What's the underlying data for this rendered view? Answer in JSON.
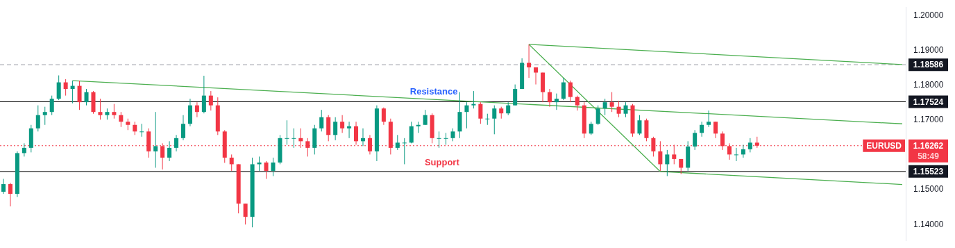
{
  "chart_data": {
    "type": "candlestick",
    "categories": [
      null,
      null,
      null,
      null,
      null,
      null,
      null,
      null,
      null,
      null,
      null,
      null,
      null,
      null,
      null,
      null,
      null,
      null,
      null,
      null,
      null,
      null,
      null,
      null,
      null,
      null,
      null,
      null,
      null,
      null,
      null,
      null,
      null,
      null,
      null,
      null,
      null,
      null,
      null,
      null,
      null,
      null,
      null,
      null,
      null,
      null,
      null,
      null,
      null,
      null,
      null,
      null,
      null,
      null,
      null,
      null,
      null,
      null,
      null,
      null,
      null,
      null,
      null,
      null,
      null,
      null,
      null,
      null,
      null,
      null,
      null,
      null,
      null,
      null,
      null,
      null,
      null,
      null,
      null,
      null,
      null,
      null,
      null,
      null,
      null,
      null,
      null,
      null,
      null,
      null,
      null,
      null,
      null,
      null,
      null,
      null,
      null,
      null,
      null,
      null,
      null,
      null,
      null,
      null,
      null,
      null,
      null,
      null,
      null,
      null,
      null,
      null,
      null,
      null,
      null,
      null,
      null,
      null,
      null,
      null,
      null,
      null,
      null,
      null,
      null,
      null,
      null,
      null,
      null,
      null,
      null
    ],
    "ohlc": [
      [
        1.1494,
        1.1531,
        1.1488,
        1.1516
      ],
      [
        1.1516,
        1.152,
        1.1452,
        1.1488
      ],
      [
        1.1488,
        1.161,
        1.1479,
        1.1605
      ],
      [
        1.1605,
        1.1633,
        1.1595,
        1.162
      ],
      [
        1.162,
        1.1686,
        1.1607,
        1.1676
      ],
      [
        1.1676,
        1.1742,
        1.1667,
        1.1714
      ],
      [
        1.1714,
        1.1738,
        1.1686,
        1.1723
      ],
      [
        1.1723,
        1.177,
        1.1714,
        1.1761
      ],
      [
        1.1761,
        1.1828,
        1.1757,
        1.1808
      ],
      [
        1.1808,
        1.1817,
        1.177,
        1.1789
      ],
      [
        1.1789,
        1.1813,
        1.1748,
        1.1798
      ],
      [
        1.1798,
        1.1813,
        1.1729,
        1.1751
      ],
      [
        1.1751,
        1.1789,
        1.1742,
        1.178
      ],
      [
        1.178,
        1.1783,
        1.1718,
        1.1723
      ],
      [
        1.1723,
        1.1761,
        1.1701,
        1.1714
      ],
      [
        1.1714,
        1.1733,
        1.1701,
        1.1723
      ],
      [
        1.1723,
        1.1746,
        1.1704,
        1.1714
      ],
      [
        1.1714,
        1.1723,
        1.168,
        1.1695
      ],
      [
        1.1695,
        1.1704,
        1.1671,
        1.1686
      ],
      [
        1.1686,
        1.1695,
        1.1657,
        1.1667
      ],
      [
        1.1667,
        1.1689,
        1.1652,
        1.1667
      ],
      [
        1.1667,
        1.1676,
        1.1592,
        1.161
      ],
      [
        1.161,
        1.1723,
        1.1563,
        1.1625
      ],
      [
        1.1625,
        1.1633,
        1.1558,
        1.1592
      ],
      [
        1.1592,
        1.1639,
        1.1582,
        1.162
      ],
      [
        1.162,
        1.1657,
        1.161,
        1.1648
      ],
      [
        1.1648,
        1.1714,
        1.1642,
        1.1689
      ],
      [
        1.1689,
        1.1761,
        1.1682,
        1.1742
      ],
      [
        1.1742,
        1.1751,
        1.1708,
        1.1723
      ],
      [
        1.1723,
        1.1827,
        1.1719,
        1.177
      ],
      [
        1.177,
        1.1783,
        1.1727,
        1.1742
      ],
      [
        1.1742,
        1.1765,
        1.1657,
        1.1667
      ],
      [
        1.1667,
        1.1671,
        1.1577,
        1.1592
      ],
      [
        1.1592,
        1.1601,
        1.1554,
        1.1573
      ],
      [
        1.1573,
        1.1573,
        1.1432,
        1.146
      ],
      [
        1.146,
        1.146,
        1.14,
        1.1422
      ],
      [
        1.1422,
        1.1592,
        1.1392,
        1.1573
      ],
      [
        1.1573,
        1.1595,
        1.1554,
        1.1578
      ],
      [
        1.1578,
        1.1582,
        1.1531,
        1.1554
      ],
      [
        1.1554,
        1.1592,
        1.1539,
        1.1578
      ],
      [
        1.1578,
        1.1657,
        1.1573,
        1.1648
      ],
      [
        1.1648,
        1.1699,
        1.1629,
        1.1648
      ],
      [
        1.1648,
        1.1676,
        1.162,
        1.1648
      ],
      [
        1.1648,
        1.1676,
        1.162,
        1.1639
      ],
      [
        1.1639,
        1.1648,
        1.1595,
        1.162
      ],
      [
        1.162,
        1.1686,
        1.1601,
        1.1676
      ],
      [
        1.1676,
        1.1729,
        1.1667,
        1.1708
      ],
      [
        1.1708,
        1.1714,
        1.1639,
        1.1657
      ],
      [
        1.1657,
        1.1708,
        1.1642,
        1.1695
      ],
      [
        1.1695,
        1.1714,
        1.1663,
        1.1676
      ],
      [
        1.1676,
        1.1695,
        1.1648,
        1.1682
      ],
      [
        1.1682,
        1.1695,
        1.1629,
        1.1639
      ],
      [
        1.1639,
        1.1676,
        1.1625,
        1.1648
      ],
      [
        1.1648,
        1.1657,
        1.1601,
        1.161
      ],
      [
        1.161,
        1.1742,
        1.1582,
        1.1733
      ],
      [
        1.1733,
        1.1736,
        1.1686,
        1.1695
      ],
      [
        1.1695,
        1.1704,
        1.1601,
        1.162
      ],
      [
        1.162,
        1.1657,
        1.1614,
        1.1635
      ],
      [
        1.1635,
        1.1648,
        1.1573,
        1.1635
      ],
      [
        1.1635,
        1.1695,
        1.1633,
        1.1682
      ],
      [
        1.1682,
        1.1695,
        1.1663,
        1.1686
      ],
      [
        1.1686,
        1.1729,
        1.1686,
        1.1714
      ],
      [
        1.1714,
        1.1719,
        1.1633,
        1.1648
      ],
      [
        1.1648,
        1.1667,
        1.162,
        1.1648
      ],
      [
        1.1648,
        1.1663,
        1.1629,
        1.1648
      ],
      [
        1.1648,
        1.1676,
        1.1639,
        1.1667
      ],
      [
        1.1667,
        1.178,
        1.1648,
        1.1723
      ],
      [
        1.1723,
        1.1751,
        1.1676,
        1.1742
      ],
      [
        1.1742,
        1.1783,
        1.1733,
        1.1746
      ],
      [
        1.1746,
        1.1751,
        1.1689,
        1.1704
      ],
      [
        1.1704,
        1.1718,
        1.1686,
        1.1704
      ],
      [
        1.1704,
        1.1742,
        1.1659,
        1.1733
      ],
      [
        1.1733,
        1.1738,
        1.1704,
        1.1719
      ],
      [
        1.1719,
        1.1751,
        1.1714,
        1.1742
      ],
      [
        1.1742,
        1.1802,
        1.1742,
        1.1789
      ],
      [
        1.1789,
        1.1877,
        1.1789,
        1.1864
      ],
      [
        1.1864,
        1.1917,
        1.1821,
        1.1851
      ],
      [
        1.1851,
        1.1851,
        1.1802,
        1.1836
      ],
      [
        1.1836,
        1.1836,
        1.1751,
        1.178
      ],
      [
        1.178,
        1.1789,
        1.1738,
        1.1751
      ],
      [
        1.1751,
        1.1776,
        1.1729,
        1.1761
      ],
      [
        1.1761,
        1.1821,
        1.1757,
        1.1808
      ],
      [
        1.1808,
        1.1813,
        1.1751,
        1.1766
      ],
      [
        1.1766,
        1.177,
        1.1727,
        1.1742
      ],
      [
        1.1742,
        1.1751,
        1.1648,
        1.1661
      ],
      [
        1.1661,
        1.1695,
        1.1657,
        1.1689
      ],
      [
        1.1689,
        1.1742,
        1.1686,
        1.1733
      ],
      [
        1.1733,
        1.1761,
        1.1714,
        1.1751
      ],
      [
        1.1751,
        1.178,
        1.1723,
        1.1738
      ],
      [
        1.1738,
        1.1755,
        1.1708,
        1.1718
      ],
      [
        1.1718,
        1.1751,
        1.1708,
        1.1742
      ],
      [
        1.1742,
        1.1746,
        1.1652,
        1.1661
      ],
      [
        1.1661,
        1.1714,
        1.1657,
        1.1699
      ],
      [
        1.1699,
        1.1704,
        1.1639,
        1.1648
      ],
      [
        1.1648,
        1.1652,
        1.1595,
        1.161
      ],
      [
        1.161,
        1.1639,
        1.1554,
        1.1573
      ],
      [
        1.1573,
        1.1614,
        1.1539,
        1.1601
      ],
      [
        1.1601,
        1.1629,
        1.1573,
        1.1588
      ],
      [
        1.1588,
        1.1588,
        1.1545,
        1.1563
      ],
      [
        1.1563,
        1.1639,
        1.1554,
        1.1624
      ],
      [
        1.1624,
        1.1671,
        1.1614,
        1.1663
      ],
      [
        1.1663,
        1.1695,
        1.1652,
        1.1686
      ],
      [
        1.1686,
        1.1727,
        1.168,
        1.1695
      ],
      [
        1.1695,
        1.1695,
        1.1648,
        1.1661
      ],
      [
        1.1661,
        1.1667,
        1.1614,
        1.1625
      ],
      [
        1.1625,
        1.1633,
        1.1586,
        1.1601
      ],
      [
        1.1601,
        1.162,
        1.1582,
        1.1601
      ],
      [
        1.1601,
        1.1629,
        1.1592,
        1.1616
      ],
      [
        1.1616,
        1.1648,
        1.1607,
        1.1635
      ],
      [
        1.1635,
        1.1652,
        1.162,
        1.16262
      ],
      null,
      null,
      null,
      null,
      null,
      null,
      null,
      null,
      null,
      null,
      null,
      null,
      null,
      null,
      null,
      null,
      null,
      null,
      null,
      null,
      null
    ],
    "series": [
      {
        "type": "line",
        "color": "#4caf50",
        "values": [
          null,
          null,
          null,
          null,
          null,
          null,
          null,
          null,
          null,
          null,
          1.1813,
          null,
          null,
          null,
          null,
          null,
          null,
          null,
          null,
          null,
          null,
          null,
          null,
          null,
          null,
          null,
          null,
          null,
          null,
          null,
          null,
          null,
          null,
          null,
          null,
          null,
          null,
          null,
          null,
          null,
          null,
          null,
          null,
          null,
          null,
          null,
          null,
          null,
          null,
          null,
          null,
          null,
          null,
          null,
          null,
          null,
          null,
          null,
          null,
          null,
          null,
          null,
          null,
          null,
          null,
          null,
          null,
          null,
          null,
          null,
          null,
          null,
          null,
          null,
          null,
          null,
          null,
          null,
          null,
          null,
          null,
          null,
          null,
          null,
          null,
          null,
          null,
          null,
          null,
          null,
          null,
          null,
          null,
          null,
          null,
          null,
          null,
          null,
          null,
          null,
          null,
          null,
          null,
          null,
          null,
          null,
          null,
          null,
          null,
          null,
          null,
          null,
          null,
          null,
          null,
          null,
          null,
          null,
          null,
          null,
          null,
          null,
          null,
          null,
          null,
          null,
          null,
          null,
          null,
          null,
          1.1689
        ]
      },
      {
        "type": "line",
        "color": "#4caf50",
        "values": [
          null,
          null,
          null,
          null,
          null,
          null,
          null,
          null,
          null,
          null,
          null,
          null,
          null,
          null,
          null,
          null,
          null,
          null,
          null,
          null,
          null,
          null,
          null,
          null,
          null,
          null,
          null,
          null,
          null,
          null,
          null,
          null,
          null,
          null,
          null,
          null,
          null,
          null,
          null,
          null,
          null,
          null,
          null,
          null,
          null,
          null,
          null,
          null,
          null,
          null,
          null,
          null,
          null,
          null,
          null,
          null,
          null,
          null,
          null,
          null,
          null,
          null,
          null,
          null,
          null,
          null,
          null,
          null,
          null,
          null,
          null,
          null,
          null,
          null,
          null,
          null,
          1.1917,
          null,
          null,
          null,
          null,
          null,
          null,
          null,
          null,
          null,
          null,
          null,
          null,
          null,
          null,
          null,
          null,
          null,
          null,
          null,
          null,
          null,
          null,
          null,
          null,
          null,
          null,
          null,
          null,
          null,
          null,
          null,
          null,
          null,
          null,
          null,
          null,
          null,
          null,
          null,
          null,
          null,
          null,
          null,
          null,
          null,
          null,
          null,
          null,
          null,
          null,
          null,
          null,
          null,
          1.1859
        ]
      },
      {
        "type": "line",
        "color": "#4caf50",
        "values": [
          null,
          null,
          null,
          null,
          null,
          null,
          null,
          null,
          null,
          null,
          null,
          null,
          null,
          null,
          null,
          null,
          null,
          null,
          null,
          null,
          null,
          null,
          null,
          null,
          null,
          null,
          null,
          null,
          null,
          null,
          null,
          null,
          null,
          null,
          null,
          null,
          null,
          null,
          null,
          null,
          null,
          null,
          null,
          null,
          null,
          null,
          null,
          null,
          null,
          null,
          null,
          null,
          null,
          null,
          null,
          null,
          null,
          null,
          null,
          null,
          null,
          null,
          null,
          null,
          null,
          null,
          null,
          null,
          null,
          null,
          null,
          null,
          null,
          null,
          null,
          null,
          1.1917,
          null,
          null,
          null,
          null,
          null,
          null,
          null,
          null,
          null,
          null,
          null,
          null,
          null,
          null,
          null,
          null,
          null,
          null,
          1.1552,
          null,
          null,
          null,
          null,
          null,
          null,
          null,
          null,
          null,
          null,
          null,
          null,
          null,
          null,
          null,
          null,
          null,
          null,
          null,
          null,
          null,
          null,
          null,
          null,
          null,
          null,
          null,
          null,
          null,
          null,
          null,
          null,
          null,
          null,
          1.1515
        ]
      }
    ],
    "ylim": [
      1.1353,
      1.2024
    ],
    "yticks": [
      {
        "value": 1.14,
        "label": "1.14000"
      },
      {
        "value": 1.15,
        "label": "1.15000"
      },
      {
        "value": 1.17,
        "label": "1.17000"
      },
      {
        "value": 1.18,
        "label": "1.18000"
      },
      {
        "value": 1.19,
        "label": "1.19000"
      },
      {
        "value": 1.2,
        "label": "1.20000"
      }
    ],
    "tick_labels": "y",
    "ref_lines": [
      {
        "axis": "y",
        "value": 1.18586,
        "label": "1.18586",
        "color": "#9598a1",
        "line_style": "dashed"
      },
      {
        "axis": "y",
        "value": 1.17524,
        "label": "1.17524",
        "color": "#000000"
      },
      {
        "axis": "y",
        "value": 1.15523,
        "label": "1.15523",
        "color": "#000000"
      },
      {
        "axis": "y",
        "value": 1.16262,
        "label": "1.16262",
        "color": "#f23645",
        "line_style": "dotted"
      }
    ],
    "annotations": [
      {
        "text": "Resistance",
        "y": 1.17524
      },
      {
        "text": "Support",
        "y": 1.15523
      },
      {
        "text": "EURUSD",
        "y": 1.16262
      },
      "58:49"
    ]
  }
}
